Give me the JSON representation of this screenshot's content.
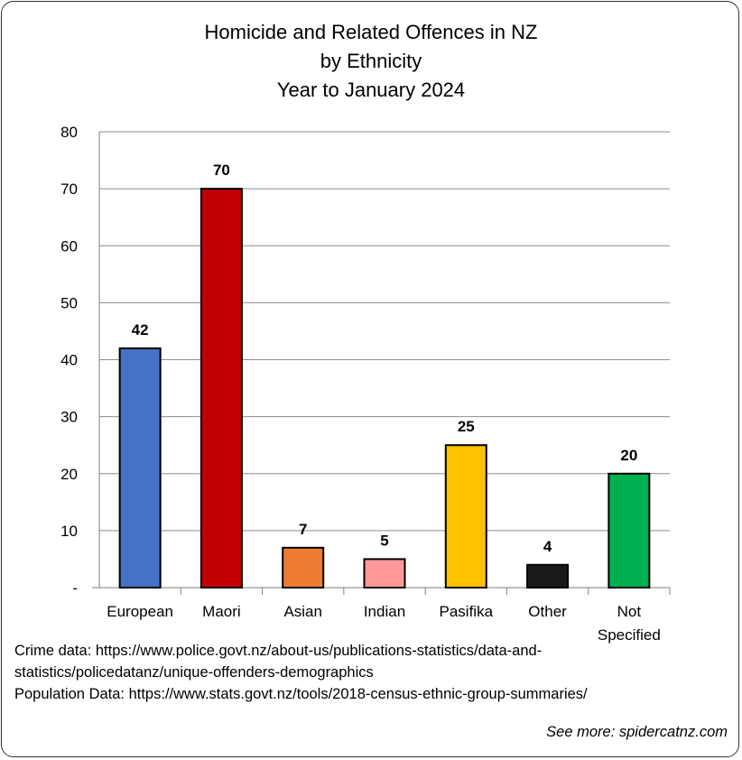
{
  "chart_data": {
    "type": "bar",
    "title": [
      "Homicide and Related Offences in NZ",
      "by Ethnicity",
      "Year to January 2024"
    ],
    "categories": [
      "European",
      "Maori",
      "Asian",
      "Indian",
      "Pasifika",
      "Other",
      "Not Specified"
    ],
    "values": [
      42,
      70,
      7,
      5,
      25,
      4,
      20
    ],
    "colors": [
      "#4472C4",
      "#C00000",
      "#ED7D31",
      "#FF9999",
      "#FFC000",
      "#1A1A1A",
      "#00B050"
    ],
    "yticks": [
      "-",
      "10",
      "20",
      "30",
      "40",
      "50",
      "60",
      "70",
      "80"
    ],
    "ylim": [
      0,
      80
    ],
    "grid": true,
    "legend": "none"
  },
  "notes": [
    "Crime data: https://www.police.govt.nz/about-us/publications-statistics/data-and-",
    "statistics/policedatanz/unique-offenders-demographics",
    "Population Data: https://www.stats.govt.nz/tools/2018-census-ethnic-group-summaries/"
  ],
  "footer": "See more: spidercatnz.com"
}
